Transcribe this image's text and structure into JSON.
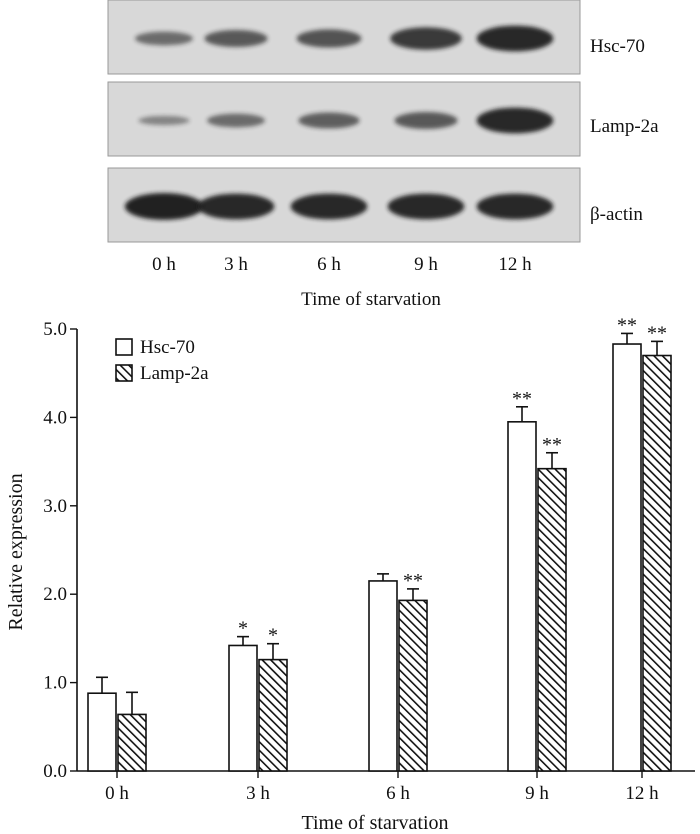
{
  "blot": {
    "rows": [
      {
        "label": "Hsc-70",
        "intensities": [
          0.35,
          0.5,
          0.55,
          0.75,
          0.9
        ]
      },
      {
        "label": "Lamp-2a",
        "intensities": [
          0.15,
          0.35,
          0.45,
          0.5,
          0.9
        ]
      },
      {
        "label": "β-actin",
        "intensities": [
          0.95,
          0.9,
          0.9,
          0.9,
          0.9
        ]
      }
    ],
    "lanes": [
      "0 h",
      "3 h",
      "6 h",
      "9 h",
      "12 h"
    ],
    "xlabel": "Time of starvation"
  },
  "chart_data": {
    "type": "bar",
    "categories": [
      "0 h",
      "3 h",
      "6 h",
      "9 h",
      "12 h"
    ],
    "series": [
      {
        "name": "Hsc-70",
        "style": "open",
        "values": [
          0.88,
          1.42,
          2.15,
          3.95,
          4.83
        ],
        "errors": [
          0.18,
          0.1,
          0.08,
          0.17,
          0.12
        ],
        "annotations": [
          "",
          "*",
          "",
          "**",
          "**"
        ]
      },
      {
        "name": "Lamp-2a",
        "style": "hatched",
        "values": [
          0.64,
          1.26,
          1.93,
          3.42,
          4.7
        ],
        "errors": [
          0.25,
          0.18,
          0.13,
          0.18,
          0.16
        ],
        "annotations": [
          "",
          "*",
          "**",
          "**",
          "**"
        ]
      }
    ],
    "xlabel": "Time of starvation",
    "ylabel": "Relative expression",
    "ylim": [
      0,
      5
    ],
    "yticks": [
      "0.0",
      "1.0",
      "2.0",
      "3.0",
      "4.0",
      "5.0"
    ],
    "legend_position": "top-left",
    "grid": false
  },
  "colors": {
    "ink": "#111111",
    "blot_bg": "#d8d8d8",
    "band": "#1a1a1a"
  }
}
